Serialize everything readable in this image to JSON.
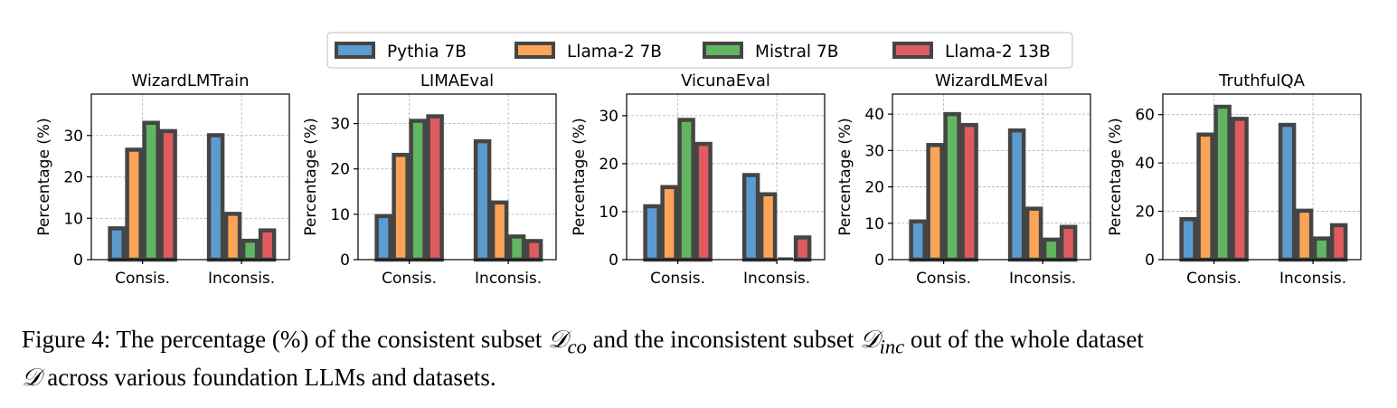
{
  "chart_data": {
    "type": "bar",
    "legend": {
      "placement": "top-center",
      "entries": [
        "Pythia 7B",
        "Llama-2 7B",
        "Mistral 7B",
        "Llama-2 13B"
      ]
    },
    "series_colors": [
      "#5b9bd0",
      "#fba458",
      "#62b661",
      "#df5b5f"
    ],
    "grid": true,
    "ylabel": "Percentage (%)",
    "panels": [
      {
        "title": "WizardLMTrain",
        "categories": [
          "Consis.",
          "Inconsis."
        ],
        "ylim": [
          0,
          40.0
        ],
        "yticks": [
          0,
          10,
          20,
          30
        ],
        "series": [
          {
            "name": "Pythia 7B",
            "values": [
              8.0,
              30.5
            ]
          },
          {
            "name": "Llama-2 7B",
            "values": [
              27.0,
              11.5
            ]
          },
          {
            "name": "Mistral 7B",
            "values": [
              33.5,
              5.0
            ]
          },
          {
            "name": "Llama-2 13B",
            "values": [
              31.5,
              7.5
            ]
          }
        ]
      },
      {
        "title": "LIMAEval",
        "categories": [
          "Consis.",
          "Inconsis."
        ],
        "ylim": [
          0,
          36.5
        ],
        "yticks": [
          0,
          10,
          20,
          30
        ],
        "series": [
          {
            "name": "Pythia 7B",
            "values": [
              10.0,
              26.5
            ]
          },
          {
            "name": "Llama-2 7B",
            "values": [
              23.5,
              13.0
            ]
          },
          {
            "name": "Mistral 7B",
            "values": [
              31.0,
              5.5
            ]
          },
          {
            "name": "Llama-2 13B",
            "values": [
              32.0,
              4.5
            ]
          }
        ]
      },
      {
        "title": "VicunaEval",
        "categories": [
          "Consis.",
          "Inconsis."
        ],
        "ylim": [
          0,
          34.5
        ],
        "yticks": [
          0,
          10,
          20,
          30
        ],
        "series": [
          {
            "name": "Pythia 7B",
            "values": [
              11.5,
              18.0
            ]
          },
          {
            "name": "Llama-2 7B",
            "values": [
              15.5,
              14.0
            ]
          },
          {
            "name": "Mistral 7B",
            "values": [
              29.5,
              0
            ]
          },
          {
            "name": "Llama-2 13B",
            "values": [
              24.5,
              5.0
            ]
          }
        ]
      },
      {
        "title": "WizardLMEval",
        "categories": [
          "Consis.",
          "Inconsis."
        ],
        "ylim": [
          0,
          45.5
        ],
        "yticks": [
          0,
          10,
          20,
          30,
          40
        ],
        "series": [
          {
            "name": "Pythia 7B",
            "values": [
              11.0,
              36.0
            ]
          },
          {
            "name": "Llama-2 7B",
            "values": [
              32.0,
              14.5
            ]
          },
          {
            "name": "Mistral 7B",
            "values": [
              40.5,
              6.0
            ]
          },
          {
            "name": "Llama-2 13B",
            "values": [
              37.5,
              9.5
            ]
          }
        ]
      },
      {
        "title": "TruthfulQA",
        "categories": [
          "Consis.",
          "Inconsis."
        ],
        "ylim": [
          0,
          68.5
        ],
        "yticks": [
          0,
          20,
          40,
          60
        ],
        "series": [
          {
            "name": "Pythia 7B",
            "values": [
              17.5,
              56.5
            ]
          },
          {
            "name": "Llama-2 7B",
            "values": [
              52.5,
              21.0
            ]
          },
          {
            "name": "Mistral 7B",
            "values": [
              64.0,
              9.5
            ]
          },
          {
            "name": "Llama-2 13B",
            "values": [
              59.0,
              15.0
            ]
          }
        ]
      }
    ]
  },
  "caption": {
    "p1": "Figure 4: The percentage (%) of the consistent subset ",
    "sym_co": "𝒟",
    "sub_co": "co",
    "p2": " and the inconsistent subset ",
    "sym_inc": "𝒟",
    "sub_inc": "inc",
    "p3": " out of the whole dataset",
    "sym_d": "𝒟",
    "p4": " across various foundation LLMs and datasets."
  }
}
